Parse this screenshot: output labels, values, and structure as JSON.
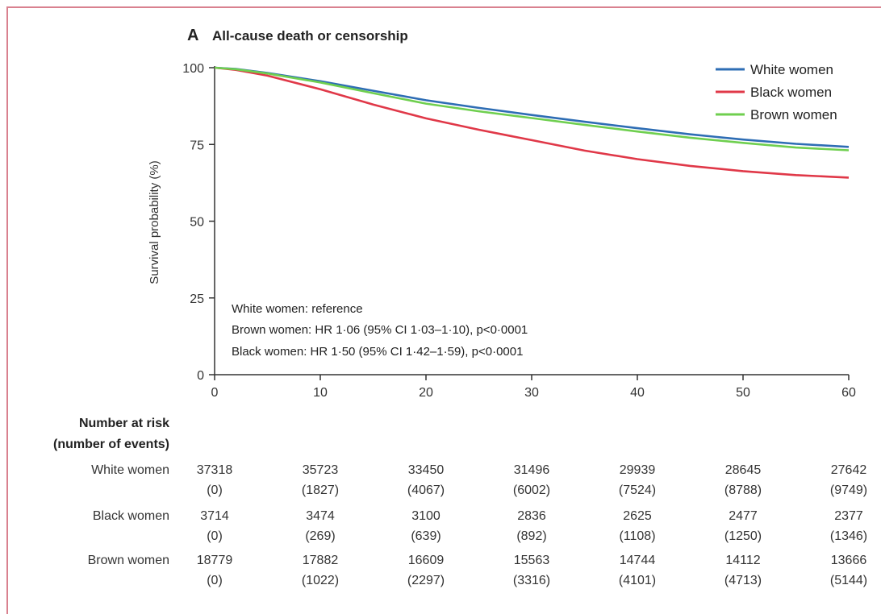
{
  "panel_label": "A",
  "risk_table": {
    "heading_line1": "Number at risk",
    "heading_line2": "(number of events)",
    "rows": [
      {
        "name": "White women",
        "at_risk": [
          "37318",
          "35723",
          "33450",
          "31496",
          "29939",
          "28645",
          "27642"
        ],
        "events": [
          "(0)",
          "(1827)",
          "(4067)",
          "(6002)",
          "(7524)",
          "(8788)",
          "(9749)"
        ]
      },
      {
        "name": "Black women",
        "at_risk": [
          "3714",
          "3474",
          "3100",
          "2836",
          "2625",
          "2477",
          "2377"
        ],
        "events": [
          "(0)",
          "(269)",
          "(639)",
          "(892)",
          "(1108)",
          "(1250)",
          "(1346)"
        ]
      },
      {
        "name": "Brown women",
        "at_risk": [
          "18779",
          "17882",
          "16609",
          "15563",
          "14744",
          "14112",
          "13666"
        ],
        "events": [
          "(0)",
          "(1022)",
          "(2297)",
          "(3316)",
          "(4101)",
          "(4713)",
          "(5144)"
        ]
      }
    ]
  },
  "chart_data": {
    "type": "line",
    "title": "All-cause death or censorship",
    "xlabel": "",
    "ylabel": "Survival probability (%)",
    "xlim": [
      0,
      60
    ],
    "ylim": [
      0,
      100
    ],
    "xticks": [
      0,
      10,
      20,
      30,
      40,
      50,
      60
    ],
    "yticks": [
      0,
      25,
      50,
      75,
      100
    ],
    "grid": false,
    "legend_position": "top-right",
    "annotations": [
      "White women: reference",
      "Brown women: HR 1·06 (95% CI 1·03–1·10), p<0·0001",
      "Black women: HR 1·50 (95% CI 1·42–1·59), p<0·0001"
    ],
    "series": [
      {
        "name": "White women",
        "color": "#2e6db4",
        "x": [
          0,
          2,
          5,
          10,
          15,
          20,
          25,
          30,
          35,
          40,
          45,
          50,
          55,
          60
        ],
        "y": [
          100,
          99.6,
          98.3,
          95.6,
          92.5,
          89.4,
          86.9,
          84.6,
          82.4,
          80.3,
          78.3,
          76.6,
          75.2,
          74.2
        ]
      },
      {
        "name": "Black women",
        "color": "#e03848",
        "x": [
          0,
          2,
          5,
          10,
          15,
          20,
          25,
          30,
          35,
          40,
          45,
          50,
          55,
          60
        ],
        "y": [
          100,
          99.3,
          97.4,
          93.0,
          88.0,
          83.5,
          79.8,
          76.4,
          73.0,
          70.2,
          68.0,
          66.3,
          65.0,
          64.2
        ]
      },
      {
        "name": "Brown women",
        "color": "#6fcf4f",
        "x": [
          0,
          2,
          5,
          10,
          15,
          20,
          25,
          30,
          35,
          40,
          45,
          50,
          55,
          60
        ],
        "y": [
          100,
          99.5,
          98.1,
          95.2,
          91.7,
          88.3,
          85.8,
          83.6,
          81.4,
          79.2,
          77.2,
          75.5,
          74.0,
          73.1
        ]
      }
    ]
  }
}
